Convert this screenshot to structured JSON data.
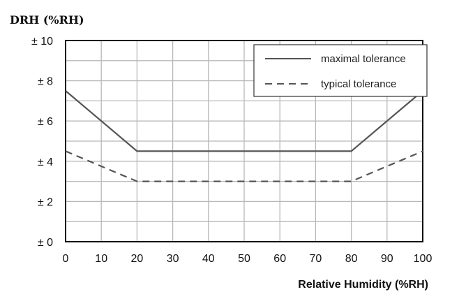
{
  "chart_data": {
    "type": "line",
    "ylabel": "DRH (%RH)",
    "xlabel": "Relative Humidity (%RH)",
    "x_ticks": [
      0,
      10,
      20,
      30,
      40,
      50,
      60,
      70,
      80,
      90,
      100
    ],
    "y_tick_labels": [
      "± 0",
      "± 2",
      "± 4",
      "± 6",
      "± 8",
      "± 10"
    ],
    "y_tick_values": [
      0,
      2,
      4,
      6,
      8,
      10
    ],
    "xlim": [
      0,
      100
    ],
    "ylim": [
      0,
      10
    ],
    "grid": true,
    "legend_position": "top-right",
    "series": [
      {
        "name": "maximal tolerance",
        "style": "solid",
        "color": "#555555",
        "x": [
          0,
          20,
          80,
          100
        ],
        "y": [
          7.5,
          4.5,
          4.5,
          7.5
        ]
      },
      {
        "name": "typical tolerance",
        "style": "dashed",
        "color": "#555555",
        "x": [
          0,
          20,
          80,
          100
        ],
        "y": [
          4.5,
          3,
          3,
          4.5
        ]
      }
    ]
  }
}
